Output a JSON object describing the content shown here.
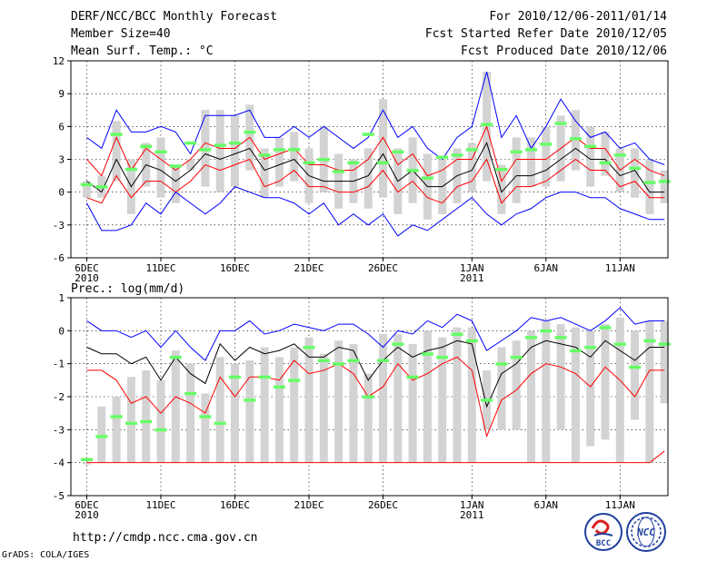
{
  "header": {
    "left": [
      "DERF/NCC/BCC Monthly Forecast",
      "Member Size=40",
      "Mean Surf. Temp.: °C"
    ],
    "right": [
      "For 2010/12/06-2011/01/14",
      "Fcst Started Refer Date 2010/12/05",
      "Fcst Produced Date 2010/12/06"
    ]
  },
  "footer": {
    "url": "http://cmdp.ncc.cma.gov.cn",
    "credit": "GrADS: COLA/IGES",
    "logo_bcc": "BCC",
    "logo_ncc": "NCC"
  },
  "colors": {
    "max_line": "#0000ff",
    "min_line": "#ff0000",
    "mean_line": "#000000",
    "box": "#d3d3d3",
    "marker": "#66ff66"
  },
  "chart_data": [
    {
      "type": "line",
      "title": "Mean Surf. Temp.: °C",
      "ylim": [
        -6,
        12
      ],
      "yticks": [
        -6,
        -3,
        0,
        3,
        6,
        9,
        12
      ],
      "xticks": [
        {
          "day": 1,
          "label": "6DEC",
          "sub": "2010"
        },
        {
          "day": 6,
          "label": "11DEC"
        },
        {
          "day": 11,
          "label": "16DEC"
        },
        {
          "day": 16,
          "label": "21DEC"
        },
        {
          "day": 21,
          "label": "26DEC"
        },
        {
          "day": 27,
          "label": "1JAN",
          "sub": "2011"
        },
        {
          "day": 32,
          "label": "6JAN"
        },
        {
          "day": 37,
          "label": "11JAN"
        }
      ],
      "x": [
        1,
        2,
        3,
        4,
        5,
        6,
        7,
        8,
        9,
        10,
        11,
        12,
        13,
        14,
        15,
        16,
        17,
        18,
        19,
        20,
        21,
        22,
        23,
        24,
        25,
        26,
        27,
        28,
        29,
        30,
        31,
        32,
        33,
        34,
        35,
        36,
        37,
        38,
        39,
        40
      ],
      "series": [
        {
          "name": "max",
          "color": "#0000ff",
          "values": [
            5,
            4,
            7.5,
            5.5,
            5.5,
            6,
            5.5,
            3.5,
            7,
            7,
            7,
            7.5,
            5,
            5,
            6,
            5,
            6,
            5,
            4,
            5,
            7.5,
            5,
            6,
            4,
            3,
            5,
            6,
            11,
            5,
            7,
            4,
            6,
            8.5,
            6.5,
            5,
            5.5,
            4,
            4.5,
            3,
            2.5
          ]
        },
        {
          "name": "upper",
          "color": "#ff0000",
          "values": [
            3,
            1.5,
            5,
            2,
            4,
            3,
            2,
            3,
            4.5,
            4,
            4,
            5,
            3,
            3.5,
            4,
            2.5,
            2.5,
            2,
            2,
            3,
            5,
            2.5,
            3.5,
            1.5,
            2,
            3,
            3,
            6,
            1,
            3,
            3,
            3,
            4,
            5,
            4,
            4,
            2,
            3,
            2,
            1.5
          ]
        },
        {
          "name": "mean",
          "color": "#000000",
          "values": [
            1,
            0,
            3,
            0.5,
            2.5,
            2,
            1,
            2,
            3.5,
            3,
            3.5,
            4,
            2,
            2.5,
            3,
            1.5,
            1,
            1,
            1,
            1.5,
            3.5,
            1,
            2,
            0.5,
            0.5,
            1.5,
            2,
            4.5,
            0,
            1.5,
            1.5,
            2,
            3,
            4,
            3,
            3,
            1.5,
            2,
            0,
            0
          ]
        },
        {
          "name": "lower",
          "color": "#ff0000",
          "values": [
            -0.5,
            -1,
            1.5,
            -0.5,
            1,
            1,
            0,
            1,
            2.5,
            2,
            2.5,
            3,
            0.5,
            1,
            2,
            0.5,
            0.5,
            0,
            0,
            0.5,
            2,
            0,
            1,
            -0.5,
            -1,
            0.5,
            1,
            3,
            -1,
            0.5,
            0.5,
            1,
            2,
            3,
            2,
            2,
            0.5,
            1,
            -0.5,
            -0.5
          ]
        },
        {
          "name": "min",
          "color": "#0000ff",
          "values": [
            -1,
            -3.5,
            -3.5,
            -3,
            -1,
            -2,
            0,
            -1,
            -2,
            -1,
            0.5,
            0,
            -0.5,
            -0.5,
            -1,
            -2,
            -1,
            -3,
            -2,
            -3,
            -2,
            -4,
            -3,
            -3.5,
            -2.5,
            -1.5,
            -0.5,
            -2,
            -3,
            -2,
            -1.5,
            -0.5,
            0,
            0,
            -0.5,
            -0.5,
            -1.5,
            -2,
            -2.5,
            -2.5
          ]
        }
      ],
      "boxes": [
        [
          1,
          -0.5
        ],
        [
          -0.5,
          1.5
        ],
        [
          1,
          6.5
        ],
        [
          3,
          -2
        ],
        [
          4.5,
          0.5
        ],
        [
          5,
          -0.5
        ],
        [
          2.5,
          -1
        ],
        [
          3,
          2
        ],
        [
          7.5,
          0.5
        ],
        [
          7.5,
          0
        ],
        [
          7,
          0.5
        ],
        [
          8,
          2
        ],
        [
          4,
          -0.5
        ],
        [
          5,
          0.5
        ],
        [
          5.5,
          1
        ],
        [
          4,
          -1
        ],
        [
          6,
          0
        ],
        [
          3.5,
          -1.5
        ],
        [
          3,
          -1
        ],
        [
          4,
          -1.5
        ],
        [
          8.5,
          -0.5
        ],
        [
          4,
          -2
        ],
        [
          5,
          -1
        ],
        [
          3.5,
          -2.5
        ],
        [
          3,
          -2
        ],
        [
          4,
          -1
        ],
        [
          4.5,
          0
        ],
        [
          11,
          1
        ],
        [
          2.5,
          -2
        ],
        [
          5,
          -1
        ],
        [
          5,
          0.5
        ],
        [
          6,
          0.5
        ],
        [
          7,
          1
        ],
        [
          7.5,
          2
        ],
        [
          6,
          0.5
        ],
        [
          5.5,
          1.5
        ],
        [
          4,
          0
        ],
        [
          4,
          -0.5
        ],
        [
          3,
          -2
        ],
        [
          2,
          -1
        ]
      ],
      "markers": [
        0.7,
        0.5,
        5.3,
        2.1,
        4.2,
        3.7,
        2.4,
        4.5,
        3.9,
        4.3,
        4.5,
        5.5,
        3.4,
        3.9,
        3.9,
        2.7,
        3,
        1.9,
        2.7,
        5.3,
        2.7,
        3.7,
        2,
        1.3,
        3.2,
        3.4,
        3.9,
        6.2,
        2.1,
        3.7,
        3.9,
        4.4,
        6.3,
        4.9,
        4.2,
        2.7,
        3.4,
        2.2,
        0.9,
        1
      ]
    },
    {
      "type": "line",
      "title": "Prec.: log(mm/d)",
      "ylim": [
        -5,
        1
      ],
      "yticks": [
        -5,
        -4,
        -3,
        -2,
        -1,
        0,
        1
      ],
      "xticks": [
        {
          "day": 1,
          "label": "6DEC",
          "sub": "2010"
        },
        {
          "day": 6,
          "label": "11DEC"
        },
        {
          "day": 11,
          "label": "16DEC"
        },
        {
          "day": 16,
          "label": "21DEC"
        },
        {
          "day": 21,
          "label": "26DEC"
        },
        {
          "day": 27,
          "label": "1JAN",
          "sub": "2011"
        },
        {
          "day": 32,
          "label": "6JAN"
        },
        {
          "day": 37,
          "label": "11JAN"
        }
      ],
      "x": [
        1,
        2,
        3,
        4,
        5,
        6,
        7,
        8,
        9,
        10,
        11,
        12,
        13,
        14,
        15,
        16,
        17,
        18,
        19,
        20,
        21,
        22,
        23,
        24,
        25,
        26,
        27,
        28,
        29,
        30,
        31,
        32,
        33,
        34,
        35,
        36,
        37,
        38,
        39,
        40
      ],
      "series": [
        {
          "name": "max",
          "color": "#0000ff",
          "values": [
            0.3,
            0,
            0,
            -0.2,
            0,
            -0.5,
            0,
            -0.5,
            -0.9,
            0,
            0,
            0.3,
            -0.1,
            0,
            0.2,
            0.1,
            0,
            0.2,
            0.2,
            -0.1,
            -0.5,
            0,
            -0.1,
            0.3,
            0.1,
            0.5,
            0.3,
            -0.6,
            -0.3,
            0,
            0.4,
            0.3,
            0.4,
            0.2,
            0,
            0.3,
            0.7,
            0.2,
            0.3,
            0.3
          ]
        },
        {
          "name": "mean",
          "color": "#000000",
          "values": [
            -0.5,
            -0.7,
            -0.7,
            -1,
            -0.8,
            -1.5,
            -0.8,
            -1.3,
            -1.6,
            -0.4,
            -0.9,
            -0.5,
            -0.7,
            -0.6,
            -0.4,
            -0.8,
            -0.8,
            -0.5,
            -0.6,
            -1.5,
            -0.9,
            -0.5,
            -0.8,
            -0.6,
            -0.5,
            -0.3,
            -0.4,
            -2.3,
            -1.3,
            -1,
            -0.5,
            -0.3,
            -0.4,
            -0.5,
            -0.8,
            -0.3,
            -0.6,
            -0.9,
            -0.5,
            -0.5
          ]
        },
        {
          "name": "lower",
          "color": "#ff0000",
          "values": [
            -1.2,
            -1.2,
            -1.5,
            -2.2,
            -2,
            -2.5,
            -2,
            -2.2,
            -2.5,
            -1.4,
            -2,
            -1.4,
            -1.4,
            -1.5,
            -0.9,
            -1.3,
            -1.2,
            -1,
            -1.3,
            -2,
            -1.7,
            -1,
            -1.5,
            -1.3,
            -1,
            -0.8,
            -1.2,
            -3.2,
            -2.1,
            -1.8,
            -1.3,
            -1,
            -1.1,
            -1.3,
            -1.7,
            -1.1,
            -1.5,
            -2,
            -1.2,
            -1.2
          ]
        },
        {
          "name": "min",
          "color": "#ff0000",
          "values": [
            -4,
            -4,
            -4,
            -4,
            -4,
            -4,
            -4,
            -4,
            -4,
            -4,
            -4,
            -4,
            -4,
            -4,
            -4,
            -4,
            -4,
            -4,
            -4,
            -4,
            -4,
            -4,
            -4,
            -4,
            -4,
            -4,
            -4,
            -4,
            -4,
            -4,
            -4,
            -4,
            -4,
            -4,
            -4,
            -4,
            -4,
            -4,
            -4,
            -3.65
          ]
        }
      ],
      "boxes": [
        [
          -4,
          -4
        ],
        [
          -2.3,
          -4
        ],
        [
          -2,
          -4
        ],
        [
          -1.4,
          -4
        ],
        [
          -1.2,
          -4
        ],
        [
          -1.5,
          -4
        ],
        [
          -0.6,
          -4
        ],
        [
          -1,
          -4
        ],
        [
          -1.9,
          -4
        ],
        [
          -0.8,
          -4
        ],
        [
          -1,
          -4
        ],
        [
          -0.9,
          -4
        ],
        [
          -0.5,
          -4
        ],
        [
          -0.8,
          -4
        ],
        [
          -0.5,
          -4
        ],
        [
          -0.2,
          -4
        ],
        [
          -0.7,
          -4
        ],
        [
          -0.3,
          -4
        ],
        [
          -0.4,
          -4
        ],
        [
          -1.3,
          -4
        ],
        [
          -0.1,
          -4
        ],
        [
          -0.1,
          -4
        ],
        [
          -0.4,
          -4
        ],
        [
          0,
          -4
        ],
        [
          -0.2,
          -4
        ],
        [
          0.1,
          -4
        ],
        [
          0.1,
          -4
        ],
        [
          -1.2,
          -3
        ],
        [
          -0.5,
          -3
        ],
        [
          -0.3,
          -3
        ],
        [
          0,
          -4
        ],
        [
          0.3,
          -4
        ],
        [
          0.2,
          -3
        ],
        [
          0.1,
          -4
        ],
        [
          0,
          -3.5
        ],
        [
          0.2,
          -3.3
        ],
        [
          0.4,
          -4
        ],
        [
          0,
          -2.7
        ],
        [
          0.3,
          -4
        ],
        [
          0.3,
          -2.2
        ]
      ],
      "markers": [
        -3.9,
        -3.2,
        -2.6,
        -2.8,
        -2.75,
        -3,
        -0.8,
        -1.9,
        -2.6,
        -2.8,
        -1.4,
        -2.1,
        -1.4,
        -1.7,
        -1.5,
        -0.5,
        -0.9,
        -1,
        -0.9,
        -2,
        -0.9,
        -0.4,
        -1.4,
        -0.7,
        -0.8,
        -0.1,
        -0.3,
        -2.1,
        -1,
        -0.8,
        -0.2,
        0,
        -0.2,
        -0.6,
        -0.5,
        0.1,
        -0.4,
        -1.1,
        -0.3,
        -0.4
      ]
    }
  ]
}
